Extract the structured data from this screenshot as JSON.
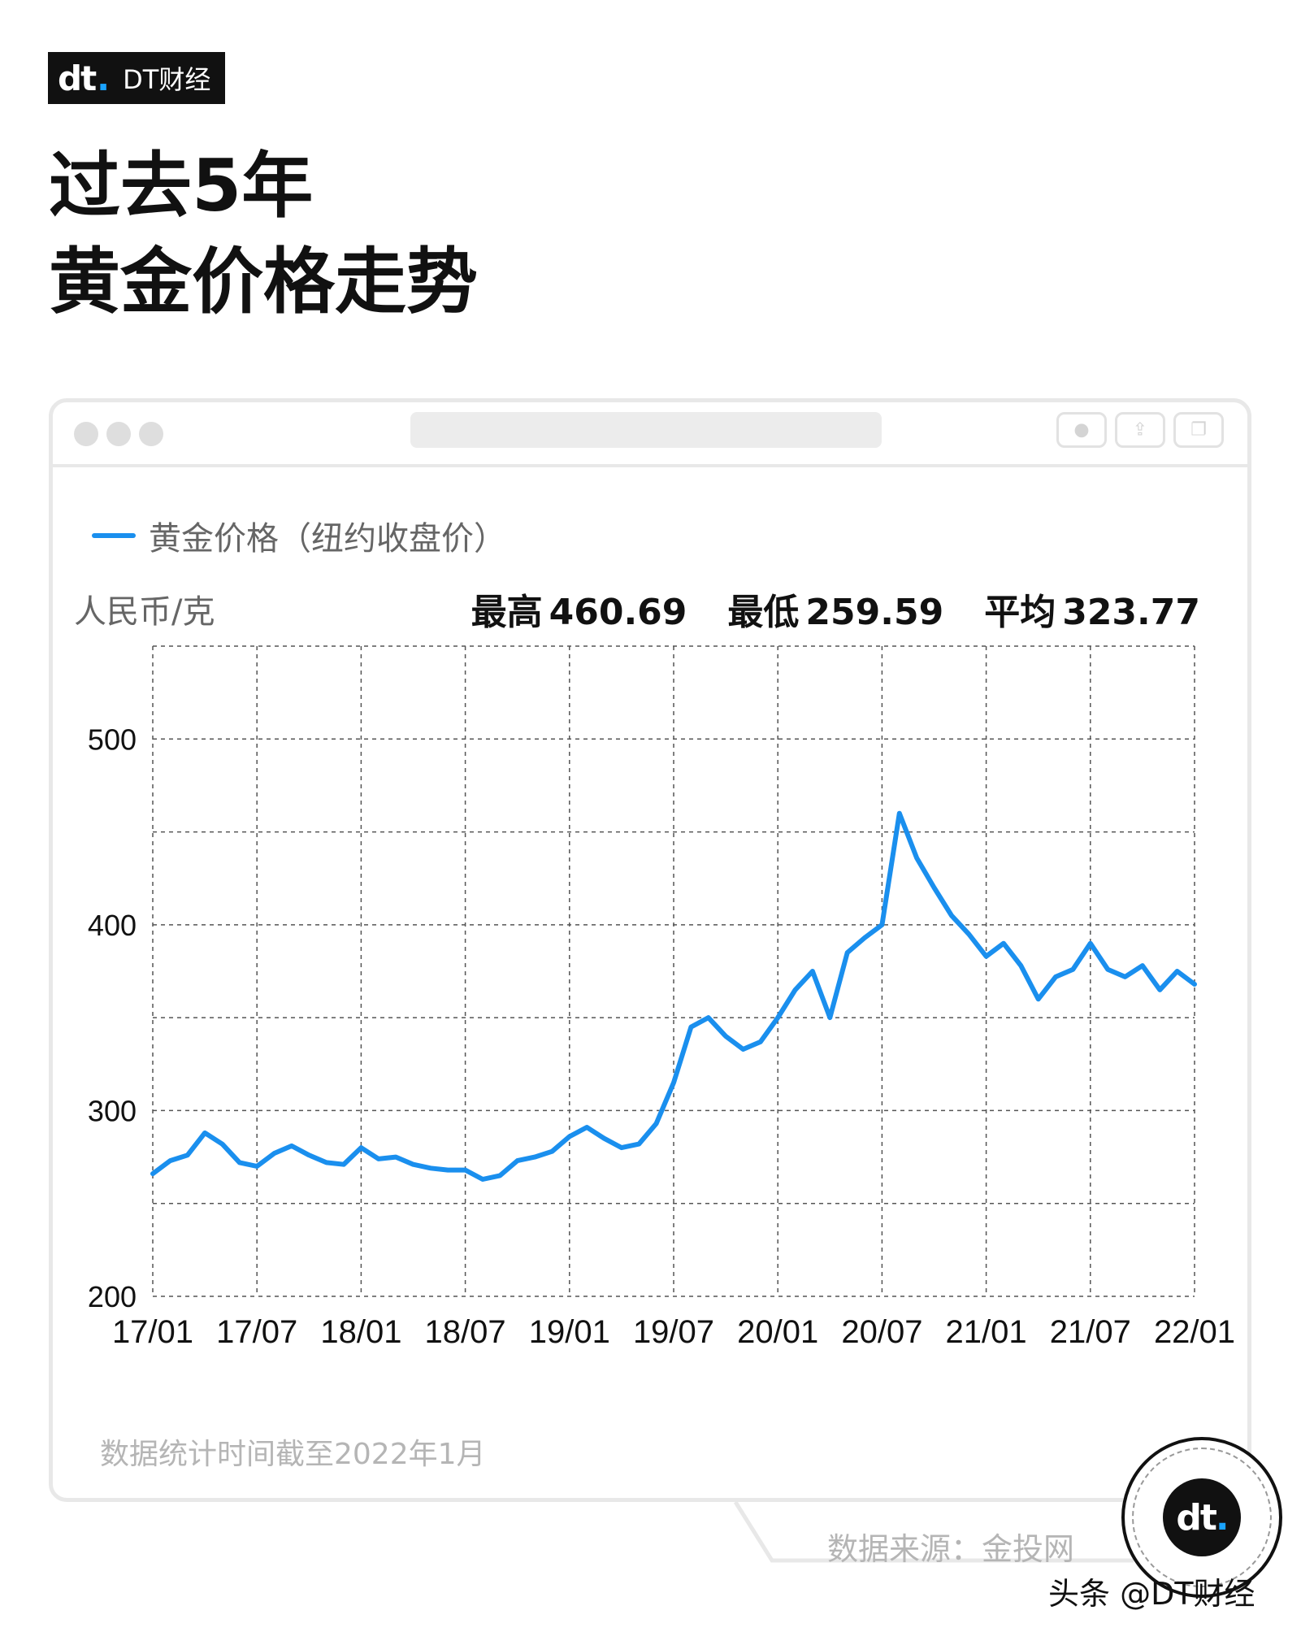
{
  "brand": {
    "logo_mark": "dt",
    "logo_name": "DT财经"
  },
  "title_lines": [
    "过去5年",
    "黄金价格走势"
  ],
  "legend_label": "黄金价格（纽约收盘价）",
  "unit_label": "人民币/克",
  "stats": [
    {
      "label": "最高",
      "value": "460.69"
    },
    {
      "label": "最低",
      "value": "259.59"
    },
    {
      "label": "平均",
      "value": "323.77"
    }
  ],
  "note": "数据统计时间截至2022年1月",
  "source": "数据来源：金投网",
  "footer_credit": "头条 @DT财经",
  "colors": {
    "line": "#1a8fee",
    "brand_dot": "#1aa3ff",
    "text": "#111111"
  },
  "icons": [
    "close-icon",
    "minimize-icon",
    "block-icon",
    "record-icon",
    "share-icon",
    "copy-icon"
  ],
  "chart_data": {
    "type": "line",
    "title": "",
    "xlabel": "",
    "ylabel": "人民币/克",
    "ylim": [
      200,
      550
    ],
    "yticks": [
      200,
      300,
      400,
      500
    ],
    "ytick_labels": [
      "200",
      "300",
      "400",
      "500"
    ],
    "xticks": [
      "2017-01",
      "2017-07",
      "2018-01",
      "2018-07",
      "2019-01",
      "2019-07",
      "2020-01",
      "2020-07",
      "2021-01",
      "2021-07",
      "2022-01"
    ],
    "xtick_labels": [
      "17/01",
      "17/07",
      "18/01",
      "18/07",
      "19/01",
      "19/07",
      "20/01",
      "20/07",
      "21/01",
      "21/07",
      "22/01"
    ],
    "grid": true,
    "legend_position": "top-left",
    "series": [
      {
        "name": "黄金价格（纽约收盘价）",
        "x": [
          "2017-01",
          "2017-02",
          "2017-03",
          "2017-04",
          "2017-05",
          "2017-06",
          "2017-07",
          "2017-08",
          "2017-09",
          "2017-10",
          "2017-11",
          "2017-12",
          "2018-01",
          "2018-02",
          "2018-03",
          "2018-04",
          "2018-05",
          "2018-06",
          "2018-07",
          "2018-08",
          "2018-09",
          "2018-10",
          "2018-11",
          "2018-12",
          "2019-01",
          "2019-02",
          "2019-03",
          "2019-04",
          "2019-05",
          "2019-06",
          "2019-07",
          "2019-08",
          "2019-09",
          "2019-10",
          "2019-11",
          "2019-12",
          "2020-01",
          "2020-02",
          "2020-03",
          "2020-04",
          "2020-05",
          "2020-06",
          "2020-07",
          "2020-08",
          "2020-09",
          "2020-10",
          "2020-11",
          "2020-12",
          "2021-01",
          "2021-02",
          "2021-03",
          "2021-04",
          "2021-05",
          "2021-06",
          "2021-07",
          "2021-08",
          "2021-09",
          "2021-10",
          "2021-11",
          "2021-12",
          "2022-01"
        ],
        "y": [
          266,
          273,
          276,
          288,
          282,
          272,
          270,
          277,
          281,
          276,
          272,
          271,
          280,
          274,
          275,
          271,
          269,
          268,
          268,
          263,
          265,
          273,
          275,
          278,
          286,
          291,
          285,
          280,
          282,
          293,
          315,
          345,
          350,
          340,
          333,
          337,
          350,
          365,
          375,
          350,
          385,
          393,
          400,
          460,
          436,
          420,
          405,
          395,
          383,
          390,
          378,
          360,
          372,
          376,
          390,
          376,
          372,
          378,
          365,
          375,
          368
        ]
      }
    ]
  }
}
